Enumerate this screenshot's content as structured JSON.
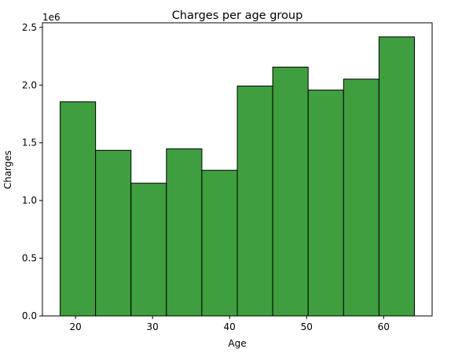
{
  "chart_data": {
    "type": "bar",
    "title": "Charges per age group",
    "xlabel": "Age",
    "ylabel": "Charges",
    "y_offset_label": "1e6",
    "bar_color": "#3f9f3f",
    "edge_color": "#000000",
    "bin_edges": [
      18,
      22.6,
      27.2,
      31.8,
      36.4,
      41,
      45.6,
      50.2,
      54.8,
      59.4,
      64
    ],
    "values": [
      1855000,
      1435000,
      1150000,
      1448000,
      1262000,
      1992000,
      2156000,
      1957000,
      2052000,
      2418000
    ],
    "xlim": [
      15.7,
      66.3
    ],
    "ylim": [
      0,
      2540000
    ],
    "x_ticks": [
      20,
      30,
      40,
      50,
      60
    ],
    "x_tick_labels": [
      "20",
      "30",
      "40",
      "50",
      "60"
    ],
    "y_ticks": [
      0,
      500000,
      1000000,
      1500000,
      2000000,
      2500000
    ],
    "y_tick_labels": [
      "0.0",
      "0.5",
      "1.0",
      "1.5",
      "2.0",
      "2.5"
    ],
    "grid": false,
    "legend": "none"
  }
}
